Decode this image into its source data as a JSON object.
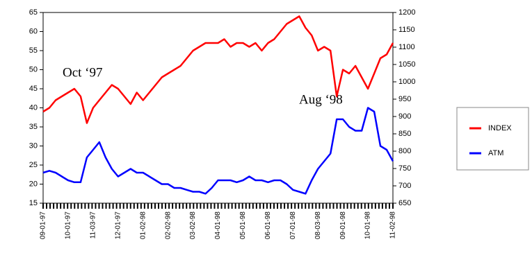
{
  "chart_data": {
    "type": "line",
    "categories": [
      "09-01-97",
      null,
      null,
      null,
      "10-01-97",
      null,
      null,
      null,
      "11-03-97",
      null,
      null,
      null,
      "12-01-97",
      null,
      null,
      null,
      "01-02-98",
      null,
      null,
      null,
      "02-02-98",
      null,
      null,
      null,
      "03-02-98",
      null,
      null,
      null,
      "04-01-98",
      null,
      null,
      null,
      "05-01-98",
      null,
      null,
      null,
      "06-01-98",
      null,
      null,
      null,
      "07-01-98",
      null,
      null,
      null,
      "08-03-98",
      null,
      null,
      null,
      "09-01-98",
      null,
      null,
      null,
      "10-01-98",
      null,
      null,
      null,
      "11-02-98"
    ],
    "series": [
      {
        "name": "INDEX",
        "color": "#ff0000",
        "axis": "y2",
        "values": [
          914,
          925,
          947,
          958,
          969,
          980,
          958,
          881,
          925,
          947,
          969,
          991,
          980,
          958,
          936,
          969,
          947,
          969,
          991,
          1013,
          1024,
          1035,
          1046,
          1068,
          1090,
          1101,
          1112,
          1112,
          1112,
          1123,
          1101,
          1112,
          1112,
          1101,
          1112,
          1090,
          1112,
          1123,
          1145,
          1167,
          1178,
          1189,
          1156,
          1134,
          1090,
          1101,
          1090,
          958,
          1035,
          1024,
          1046,
          1013,
          980,
          1024,
          1068,
          1079,
          1112
        ]
      },
      {
        "name": "ATM",
        "color": "#0000ff",
        "values": [
          23,
          23.5,
          23,
          22,
          21,
          20.5,
          20.5,
          27,
          29,
          31,
          27,
          24,
          22,
          23,
          24,
          23,
          23,
          22,
          21,
          20,
          20,
          19,
          19,
          18.5,
          18,
          18,
          17.5,
          19,
          21,
          21,
          21,
          20.5,
          21,
          22,
          21,
          21,
          20.5,
          21,
          21,
          20,
          18.5,
          18,
          17.5,
          21,
          24,
          26,
          28,
          37,
          37,
          35,
          34,
          34,
          40,
          39,
          30,
          29,
          26
        ]
      }
    ],
    "ylim": [
      15,
      65
    ],
    "yticks": [
      15,
      20,
      25,
      30,
      35,
      40,
      45,
      50,
      55,
      60,
      65
    ],
    "y2lim": [
      650,
      1200
    ],
    "y2ticks": [
      650,
      700,
      750,
      800,
      850,
      900,
      950,
      1000,
      1050,
      1100,
      1150,
      1200
    ],
    "annotations": [
      "Oct ‘97",
      "Aug ‘98"
    ],
    "legend": "right"
  }
}
